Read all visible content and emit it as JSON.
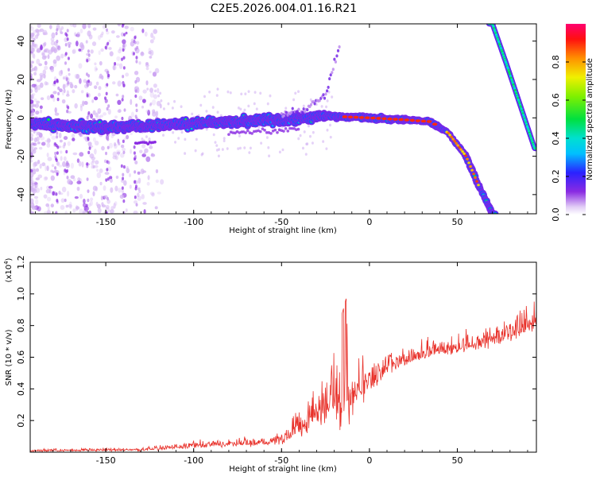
{
  "title": "C2E5.2026.004.01.16.R21",
  "chart_data": [
    {
      "type": "heatmap",
      "name": "spectrogram",
      "xlabel": "Height of straight line (km)",
      "ylabel": "Frequency (Hz)",
      "xlim": [
        -193,
        95
      ],
      "ylim": [
        -50,
        49
      ],
      "xticks": [
        -150,
        -100,
        -50,
        0,
        50
      ],
      "yticks": [
        -40,
        -20,
        0,
        20,
        40
      ],
      "colorbar": {
        "label": "Normalized spectral amplitude",
        "range": [
          0,
          1
        ],
        "ticks": [
          0.0,
          0.2,
          0.4,
          0.6,
          0.8
        ],
        "tick_labels": [
          "0.0",
          "0.2",
          "0.4",
          "0.6",
          "0.8"
        ]
      },
      "features": [
        {
          "name": "main-trace",
          "x": [
            -193,
            -150,
            -100,
            -50,
            -25,
            0,
            20,
            35,
            45,
            55,
            62,
            70
          ],
          "y": [
            -3,
            -5,
            -3,
            -1,
            1,
            0,
            -1,
            -2,
            -8,
            -20,
            -35,
            -50
          ],
          "peak": 0.9
        },
        {
          "name": "upper-right-trace",
          "x": [
            70,
            78,
            86,
            94
          ],
          "y": [
            49,
            28,
            6,
            -16
          ],
          "peak": 0.4
        },
        {
          "name": "upper-branch",
          "x": [
            -50,
            -35,
            -25,
            -20,
            -17
          ],
          "y": [
            2,
            5,
            12,
            28,
            38
          ],
          "peak": 0.15
        }
      ]
    },
    {
      "type": "line",
      "name": "snr",
      "xlabel": "Height of straight line (km)",
      "ylabel": "SNR (10 * v/v)",
      "multiplier": "(x10^4)",
      "multiplier_base": "(x10",
      "multiplier_exp": "4",
      "color": "#e8312a",
      "xlim": [
        -193,
        95
      ],
      "ylim": [
        0,
        1.2
      ],
      "xticks": [
        -150,
        -100,
        -50,
        0,
        50
      ],
      "yticks": [
        0.2,
        0.4,
        0.6,
        0.8,
        1.0,
        1.2
      ],
      "ytick_labels": [
        "0.2",
        "0.4",
        "0.6",
        "0.8",
        "1.0",
        "1.2"
      ],
      "envelope": {
        "x": [
          -193,
          -130,
          -100,
          -60,
          -50,
          -40,
          -30,
          -20,
          -13,
          -5,
          5,
          10,
          25,
          40,
          60,
          80,
          95
        ],
        "base": [
          0.01,
          0.015,
          0.04,
          0.06,
          0.08,
          0.16,
          0.26,
          0.34,
          0.36,
          0.4,
          0.48,
          0.55,
          0.6,
          0.64,
          0.68,
          0.75,
          0.84
        ],
        "amp": [
          0.015,
          0.02,
          0.04,
          0.05,
          0.08,
          0.18,
          0.28,
          0.35,
          0.62,
          0.25,
          0.15,
          0.15,
          0.12,
          0.12,
          0.12,
          0.14,
          0.18
        ]
      }
    }
  ]
}
